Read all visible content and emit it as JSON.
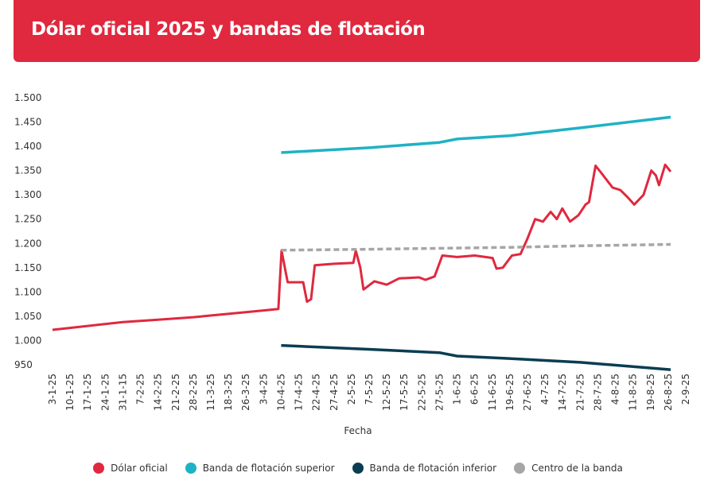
{
  "header": {
    "title": "Dólar oficial 2025 y bandas de flotación"
  },
  "chart_data": {
    "type": "line",
    "title": "Dólar oficial 2025 y bandas de flotación",
    "xlabel": "Fecha",
    "ylabel": "",
    "ylim": [
      950,
      1500
    ],
    "yticks": [
      "950",
      "1.000",
      "1.050",
      "1.100",
      "1.150",
      "1.200",
      "1.250",
      "1.300",
      "1.350",
      "1.400",
      "1.450",
      "1.500"
    ],
    "ytick_values": [
      950,
      1000,
      1050,
      1100,
      1150,
      1200,
      1250,
      1300,
      1350,
      1400,
      1450,
      1500
    ],
    "categories": [
      "3-1-25",
      "10-1-25",
      "17-1-25",
      "24-1-25",
      "31-1-15",
      "7-2-25",
      "14-2-25",
      "21-2-25",
      "28-2-25",
      "11-3-25",
      "18-3-25",
      "26-3-25",
      "3-4-25",
      "10-4-25",
      "17-4-25",
      "22-4-25",
      "27-4-25",
      "2-5-25",
      "7-5-25",
      "12-5-25",
      "17-5-25",
      "22-5-25",
      "27-5-25",
      "1-6-25",
      "6-6-25",
      "11-6-25",
      "19-6-25",
      "27-6-25",
      "4-7-25",
      "14-7-25",
      "21-7-25",
      "28-7-25",
      "4-8-25",
      "11-8-25",
      "19-8-25",
      "26-8-25",
      "2-9-25"
    ],
    "series": [
      {
        "name": "Dólar oficial",
        "color": "#e0283e",
        "points": [
          [
            0,
            1022
          ],
          [
            2,
            1030
          ],
          [
            4,
            1038
          ],
          [
            6,
            1043
          ],
          [
            8,
            1048
          ],
          [
            10,
            1055
          ],
          [
            12,
            1062
          ],
          [
            12.84,
            1065
          ],
          [
            13.02,
            1185
          ],
          [
            13.37,
            1120
          ],
          [
            14.25,
            1120
          ],
          [
            14.47,
            1080
          ],
          [
            14.7,
            1085
          ],
          [
            14.91,
            1155
          ],
          [
            16,
            1158
          ],
          [
            17.1,
            1160
          ],
          [
            17.24,
            1185
          ],
          [
            17.5,
            1150
          ],
          [
            17.68,
            1105
          ],
          [
            18.3,
            1122
          ],
          [
            19,
            1115
          ],
          [
            19.7,
            1128
          ],
          [
            20.84,
            1130
          ],
          [
            21.2,
            1125
          ],
          [
            21.72,
            1132
          ],
          [
            22.16,
            1175
          ],
          [
            23,
            1172
          ],
          [
            24,
            1175
          ],
          [
            25.02,
            1170
          ],
          [
            25.24,
            1148
          ],
          [
            25.6,
            1150
          ],
          [
            26.12,
            1175
          ],
          [
            26.6,
            1178
          ],
          [
            27,
            1210
          ],
          [
            27.44,
            1250
          ],
          [
            27.88,
            1245
          ],
          [
            28.32,
            1265
          ],
          [
            28.67,
            1250
          ],
          [
            28.98,
            1272
          ],
          [
            29.42,
            1245
          ],
          [
            29.9,
            1258
          ],
          [
            30.3,
            1280
          ],
          [
            30.5,
            1285
          ],
          [
            30.87,
            1360
          ],
          [
            31.2,
            1345
          ],
          [
            31.84,
            1315
          ],
          [
            32.28,
            1310
          ],
          [
            32.7,
            1295
          ],
          [
            33.07,
            1280
          ],
          [
            33.6,
            1300
          ],
          [
            34.04,
            1350
          ],
          [
            34.3,
            1340
          ],
          [
            34.48,
            1320
          ],
          [
            34.83,
            1362
          ],
          [
            35.14,
            1348
          ]
        ]
      },
      {
        "name": "Banda de flotación superior",
        "color": "#1fb2c4",
        "points": [
          [
            13,
            1387
          ],
          [
            18,
            1397
          ],
          [
            22,
            1408
          ],
          [
            23,
            1415
          ],
          [
            26,
            1422
          ],
          [
            30,
            1438
          ],
          [
            35.14,
            1460
          ]
        ]
      },
      {
        "name": "Banda de flotación inferior",
        "color": "#0b3d52",
        "points": [
          [
            13,
            990
          ],
          [
            18,
            982
          ],
          [
            22,
            975
          ],
          [
            23,
            968
          ],
          [
            26,
            963
          ],
          [
            30,
            955
          ],
          [
            35.14,
            940
          ]
        ]
      },
      {
        "name": "Centro de la banda",
        "color": "#a6a6a6",
        "dashed": true,
        "points": [
          [
            13,
            1186
          ],
          [
            18,
            1188
          ],
          [
            22,
            1190
          ],
          [
            26,
            1192
          ],
          [
            30,
            1195
          ],
          [
            35.14,
            1198
          ]
        ]
      }
    ],
    "legend_position": "bottom"
  }
}
